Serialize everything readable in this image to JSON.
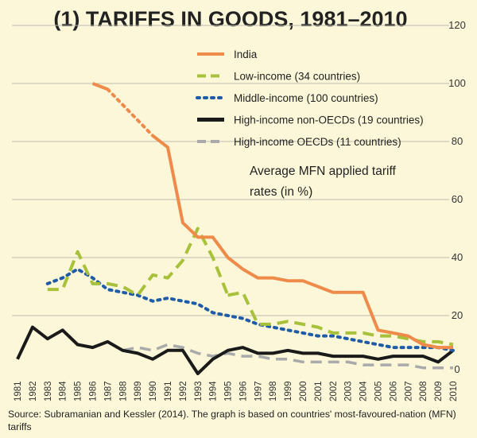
{
  "chart_data": {
    "type": "line",
    "title": "(1) TARIFFS IN GOODS, 1981–2010",
    "annotation_lines": [
      "Average MFN applied tariff",
      "rates (in %)"
    ],
    "ylim": [
      0,
      120
    ],
    "yticks": [
      0,
      20,
      40,
      60,
      80,
      100,
      120
    ],
    "grid": "horizontal",
    "legend_position": "top-right",
    "x": [
      1981,
      1982,
      1983,
      1984,
      1985,
      1986,
      1987,
      1988,
      1989,
      1990,
      1991,
      1992,
      1993,
      1994,
      1995,
      1996,
      1997,
      1998,
      1999,
      2000,
      2001,
      2002,
      2003,
      2004,
      2005,
      2006,
      2007,
      2008,
      2009,
      2010
    ],
    "xtick_labels": [
      "1981",
      "1982",
      "1983",
      "1984",
      "1985",
      "1986",
      "1987",
      "1988",
      "1989",
      "1990",
      "1991",
      "1992",
      "1993",
      "1994",
      "1995",
      "1996",
      "1997",
      "1998",
      "1999",
      "2000",
      "2001",
      "2002",
      "2003",
      "2004",
      "2005",
      "2006",
      "2007",
      "2008",
      "2009",
      "2010"
    ],
    "series": [
      {
        "name": "India",
        "color": "#ee8a4a",
        "dash": "solid",
        "segments": [
          [
            [
              1986,
              100
            ],
            [
              1987,
              98
            ]
          ],
          [
            [
              1987,
              98
            ],
            [
              1990,
              82
            ]
          ],
          [
            [
              1990,
              82
            ],
            [
              1991,
              78
            ],
            [
              1992,
              52
            ],
            [
              1993,
              47
            ],
            [
              1994,
              47
            ],
            [
              1995,
              40
            ],
            [
              1996,
              36
            ],
            [
              1997,
              33
            ],
            [
              1998,
              33
            ],
            [
              1999,
              32
            ],
            [
              2000,
              32
            ],
            [
              2001,
              30
            ],
            [
              2002,
              28
            ],
            [
              2003,
              28
            ],
            [
              2004,
              28
            ],
            [
              2005,
              15
            ],
            [
              2006,
              14
            ],
            [
              2007,
              13
            ],
            [
              2008,
              10
            ],
            [
              2009,
              9
            ],
            [
              2010,
              9
            ]
          ]
        ],
        "segment_styles": [
          "solid",
          "dotted",
          "solid"
        ]
      },
      {
        "name": "Low-income (34 countries)",
        "color": "#a8c13a",
        "dash": "dashed",
        "segments": [
          [
            [
              1983,
              29
            ],
            [
              1984,
              29
            ],
            [
              1985,
              42
            ],
            [
              1986,
              31
            ],
            [
              1987,
              31
            ],
            [
              1988,
              30
            ],
            [
              1989,
              27
            ],
            [
              1990,
              34
            ],
            [
              1991,
              33
            ],
            [
              1992,
              39
            ],
            [
              1993,
              50
            ],
            [
              1994,
              40
            ],
            [
              1995,
              27
            ]
          ],
          [
            [
              1995,
              27
            ],
            [
              1996,
              28
            ],
            [
              1997,
              17
            ],
            [
              1998,
              17
            ],
            [
              1999,
              18
            ],
            [
              2000,
              17
            ],
            [
              2001,
              16
            ],
            [
              2002,
              14
            ],
            [
              2003,
              14
            ],
            [
              2004,
              14
            ],
            [
              2005,
              13
            ],
            [
              2006,
              13
            ],
            [
              2007,
              12
            ],
            [
              2008,
              11
            ],
            [
              2009,
              11
            ],
            [
              2010,
              10
            ]
          ]
        ],
        "segment_styles": [
          "dashed",
          "dashed"
        ]
      },
      {
        "name": "Middle-income (100 countries)",
        "color": "#1f5ca8",
        "dash": "dotted",
        "segments": [
          [
            [
              1983,
              31
            ],
            [
              1984,
              33
            ],
            [
              1985,
              36
            ],
            [
              1986,
              33
            ],
            [
              1987,
              29
            ],
            [
              1988,
              28
            ],
            [
              1989,
              27
            ],
            [
              1990,
              25
            ],
            [
              1991,
              26
            ],
            [
              1992,
              25
            ],
            [
              1993,
              24
            ],
            [
              1994,
              21
            ],
            [
              1995,
              20
            ],
            [
              1996,
              19
            ],
            [
              1997,
              17
            ],
            [
              1998,
              16
            ],
            [
              1999,
              15
            ],
            [
              2000,
              14
            ],
            [
              2001,
              13
            ],
            [
              2002,
              13
            ],
            [
              2003,
              12
            ],
            [
              2004,
              11
            ],
            [
              2005,
              10
            ],
            [
              2006,
              9
            ],
            [
              2007,
              9
            ],
            [
              2008,
              9
            ],
            [
              2009,
              9
            ],
            [
              2010,
              8
            ]
          ]
        ],
        "segment_styles": [
          "dotted"
        ]
      },
      {
        "name": "High-income non-OECDs (19 countries)",
        "color": "#1a1a1a",
        "dash": "solid",
        "segments": [
          [
            [
              1981,
              5
            ],
            [
              1982,
              16
            ],
            [
              1983,
              12
            ],
            [
              1984,
              15
            ],
            [
              1985,
              10
            ],
            [
              1986,
              9
            ],
            [
              1987,
              11
            ],
            [
              1988,
              8
            ],
            [
              1989,
              7
            ],
            [
              1990,
              5
            ],
            [
              1991,
              8
            ],
            [
              1992,
              8
            ],
            [
              1993,
              0
            ],
            [
              1994,
              5
            ],
            [
              1995,
              8
            ],
            [
              1996,
              9
            ],
            [
              1997,
              7
            ],
            [
              1998,
              7
            ],
            [
              1999,
              8
            ],
            [
              2000,
              7
            ],
            [
              2001,
              7
            ],
            [
              2002,
              6
            ],
            [
              2003,
              6
            ],
            [
              2004,
              6
            ],
            [
              2005,
              5
            ],
            [
              2006,
              6
            ],
            [
              2007,
              6
            ],
            [
              2008,
              6
            ],
            [
              2009,
              4
            ],
            [
              2010,
              8
            ]
          ]
        ],
        "segment_styles": [
          "solid"
        ]
      },
      {
        "name": "High-income OECDs (11 countries)",
        "color": "#aaaaaa",
        "dash": "dashed",
        "segments": [
          [
            [
              1988,
              8
            ],
            [
              1989,
              9
            ],
            [
              1990,
              8
            ],
            [
              1991,
              10
            ],
            [
              1992,
              9
            ],
            [
              1993,
              7
            ],
            [
              1994,
              6
            ],
            [
              1995,
              7
            ],
            [
              1996,
              6
            ],
            [
              1997,
              6
            ],
            [
              1998,
              5
            ],
            [
              1999,
              5
            ],
            [
              2000,
              4
            ],
            [
              2001,
              4
            ],
            [
              2002,
              4
            ],
            [
              2003,
              4
            ],
            [
              2004,
              3
            ],
            [
              2005,
              3
            ],
            [
              2006,
              3
            ],
            [
              2007,
              3
            ],
            [
              2008,
              2
            ],
            [
              2009,
              2
            ],
            [
              2010,
              2
            ]
          ]
        ],
        "segment_styles": [
          "dashed"
        ]
      }
    ]
  },
  "source": "Source: Subramanian and Kessler (2014). The graph is based on countries' most-favoured-nation (MFN) tariffs"
}
